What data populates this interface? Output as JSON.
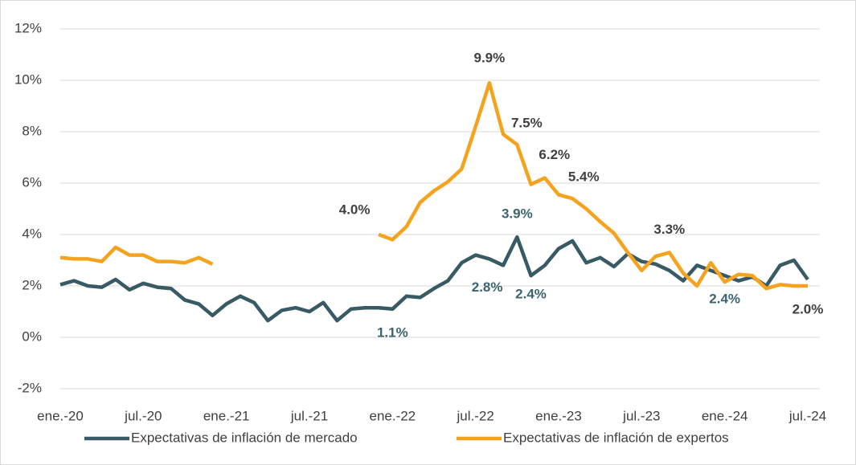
{
  "chart_data": {
    "type": "line",
    "categories": [
      "ene.-20",
      null,
      null,
      null,
      null,
      null,
      "jul.-20",
      null,
      null,
      null,
      null,
      null,
      "ene.-21",
      null,
      null,
      null,
      null,
      null,
      "jul.-21",
      null,
      null,
      null,
      null,
      null,
      "ene.-22",
      null,
      null,
      null,
      null,
      null,
      "jul.-22",
      null,
      null,
      null,
      null,
      null,
      "ene.-23",
      null,
      null,
      null,
      null,
      null,
      "jul.-23",
      null,
      null,
      null,
      null,
      null,
      "ene.-24",
      null,
      null,
      null,
      null,
      null,
      "jul.-24"
    ],
    "series": [
      {
        "name": "Expectativas de inflación de mercado",
        "color": "#385a64",
        "values": [
          2.05,
          2.2,
          2.0,
          1.95,
          2.25,
          1.85,
          2.1,
          1.95,
          1.9,
          1.45,
          1.3,
          0.85,
          1.3,
          1.6,
          1.35,
          0.65,
          1.05,
          1.15,
          1.0,
          1.35,
          0.65,
          1.1,
          1.15,
          1.15,
          1.1,
          1.6,
          1.55,
          1.9,
          2.2,
          2.9,
          3.2,
          3.05,
          2.8,
          3.9,
          2.4,
          2.8,
          3.45,
          3.75,
          2.9,
          3.1,
          2.75,
          3.25,
          2.95,
          2.85,
          2.6,
          2.2,
          2.8,
          2.6,
          2.4,
          2.2,
          2.35,
          2.0,
          2.8,
          3.0,
          2.25
        ],
        "value_labels": [
          null,
          null,
          null,
          null,
          null,
          null,
          null,
          null,
          null,
          null,
          null,
          null,
          null,
          null,
          null,
          null,
          null,
          null,
          null,
          null,
          null,
          null,
          null,
          null,
          "1.1%",
          null,
          null,
          null,
          null,
          null,
          null,
          null,
          "2.8%",
          "3.9%",
          "2.4%",
          null,
          null,
          null,
          null,
          null,
          null,
          null,
          null,
          null,
          null,
          null,
          null,
          null,
          "2.4%",
          null,
          null,
          null,
          null,
          null,
          null
        ]
      },
      {
        "name": "Expectativas de inflación de expertos",
        "color": "#f5a31f",
        "values": [
          3.1,
          3.05,
          3.05,
          2.95,
          3.5,
          3.2,
          3.2,
          2.95,
          2.95,
          2.9,
          3.1,
          2.85,
          null,
          null,
          null,
          null,
          null,
          null,
          null,
          null,
          null,
          null,
          null,
          4.0,
          3.8,
          4.3,
          5.25,
          5.7,
          6.05,
          6.55,
          8.2,
          9.9,
          7.9,
          7.5,
          5.95,
          6.2,
          5.55,
          5.4,
          5.0,
          4.5,
          4.05,
          3.3,
          2.6,
          3.15,
          3.3,
          2.5,
          2.0,
          2.9,
          2.15,
          2.45,
          2.4,
          1.9,
          2.05,
          2.0,
          2.0
        ],
        "value_labels": [
          null,
          null,
          null,
          null,
          null,
          null,
          null,
          null,
          null,
          null,
          null,
          null,
          null,
          null,
          null,
          null,
          null,
          null,
          null,
          null,
          null,
          null,
          null,
          "4.0%",
          null,
          null,
          null,
          null,
          null,
          null,
          null,
          "9.9%",
          null,
          "7.5%",
          null,
          "6.2%",
          null,
          "5.4%",
          null,
          null,
          null,
          null,
          null,
          null,
          "3.3%",
          null,
          null,
          null,
          null,
          null,
          null,
          null,
          null,
          null,
          "2.0%"
        ]
      }
    ],
    "ylim": [
      -2,
      12
    ],
    "yticks": [
      {
        "value": -2,
        "label": "-2%"
      },
      {
        "value": 0,
        "label": "0%"
      },
      {
        "value": 2,
        "label": "2%"
      },
      {
        "value": 4,
        "label": "4%"
      },
      {
        "value": 6,
        "label": "6%"
      },
      {
        "value": 8,
        "label": "8%"
      },
      {
        "value": 10,
        "label": "10%"
      },
      {
        "value": 12,
        "label": "12%"
      }
    ],
    "grid": true,
    "legend": "bottom"
  }
}
